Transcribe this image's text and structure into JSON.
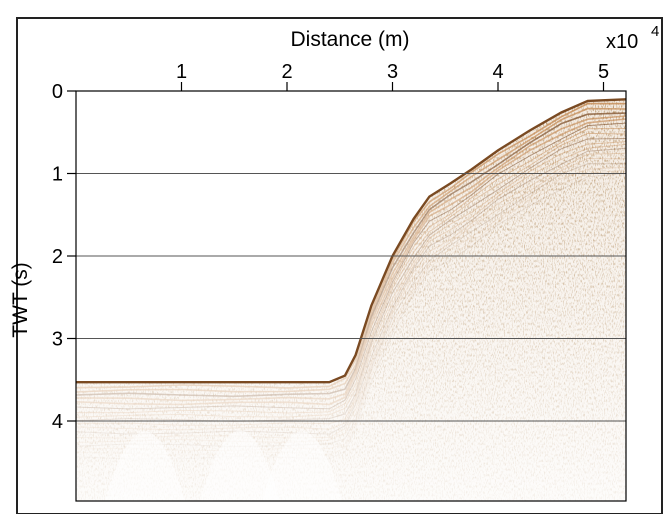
{
  "chart_data": {
    "type": "seismic-section",
    "xlabel": "Distance (m)",
    "ylabel": "TWT (s)",
    "x_exponent_label": "x10",
    "x_exponent_power": "4",
    "x_ticks": [
      {
        "value": 1,
        "label": "1"
      },
      {
        "value": 2,
        "label": "2"
      },
      {
        "value": 3,
        "label": "3"
      },
      {
        "value": 4,
        "label": "4"
      },
      {
        "value": 5,
        "label": "5"
      }
    ],
    "y_ticks": [
      {
        "value": 0,
        "label": "0"
      },
      {
        "value": 1,
        "label": "1"
      },
      {
        "value": 2,
        "label": "2"
      },
      {
        "value": 3,
        "label": "3"
      },
      {
        "value": 4,
        "label": "4"
      }
    ],
    "xlim": [
      0,
      5.2
    ],
    "ylim": [
      0,
      5.0
    ],
    "y_inverted": true,
    "grid_y": true,
    "seafloor_profile": {
      "x": [
        0.0,
        0.5,
        1.0,
        1.5,
        2.0,
        2.4,
        2.55,
        2.65,
        2.8,
        3.0,
        3.2,
        3.35,
        3.55,
        3.75,
        4.0,
        4.3,
        4.6,
        4.85,
        5.2
      ],
      "y": [
        3.53,
        3.53,
        3.53,
        3.53,
        3.53,
        3.53,
        3.45,
        3.2,
        2.6,
        2.0,
        1.55,
        1.28,
        1.12,
        0.95,
        0.72,
        0.48,
        0.26,
        0.12,
        0.1
      ]
    },
    "colors": {
      "reflector_dark": "#7a4a22",
      "reflector_light": "#c58b55",
      "background": "#ffffff",
      "grid": "#555555"
    }
  }
}
